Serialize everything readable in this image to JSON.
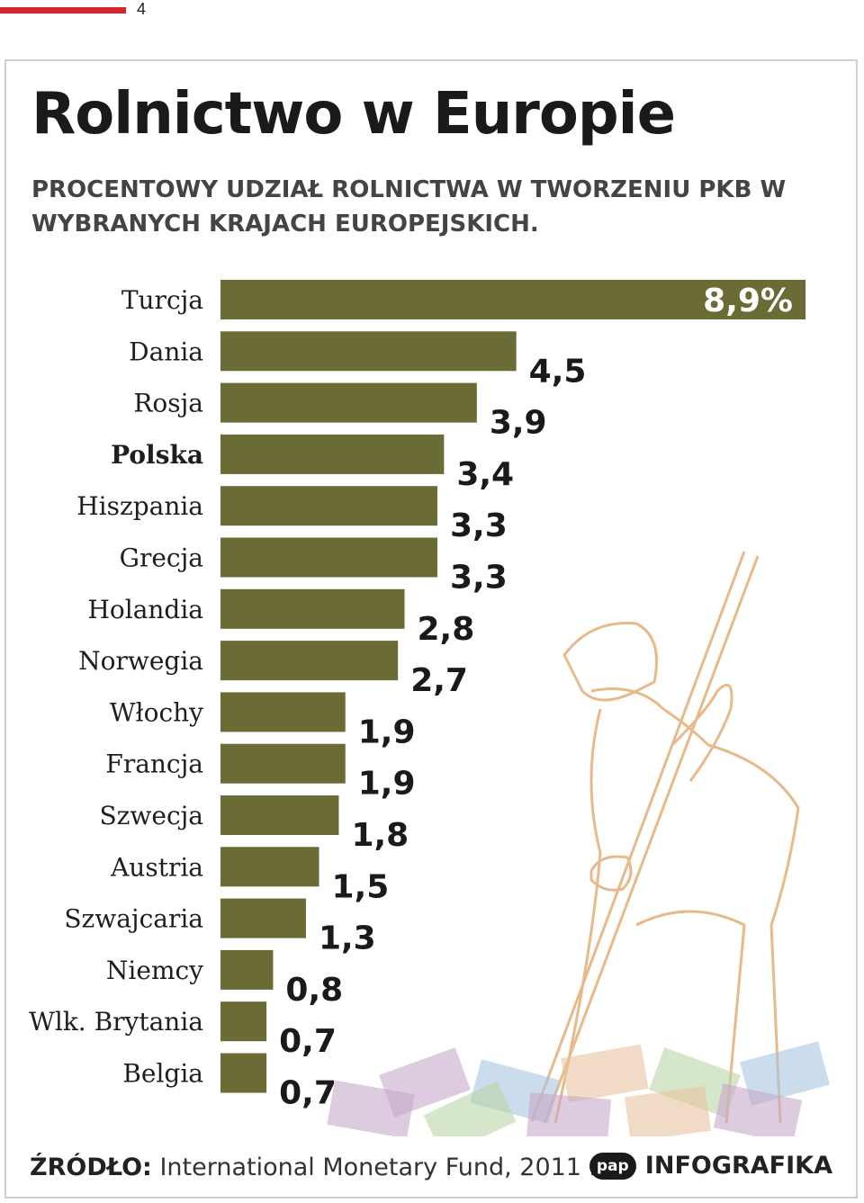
{
  "page": {
    "number": "4"
  },
  "header": {
    "title": "Rolnictwo w Europie",
    "subtitle": "PROCENTOWY UDZIAŁ ROLNICTWA W TWORZENIU PKB W WYBRANYCH KRAJACH EUROPEJSKICH."
  },
  "chart_data": {
    "type": "bar",
    "orientation": "horizontal",
    "title": "PROCENTOWY UDZIAŁ ROLNICTWA W TWORZENIU PKB W WYBRANYCH KRAJACH EUROPEJSKICH.",
    "categories": [
      "Turcja",
      "Dania",
      "Rosja",
      "Polska",
      "Hiszpania",
      "Grecja",
      "Holandia",
      "Norwegia",
      "Włochy",
      "Francja",
      "Szwecja",
      "Austria",
      "Szwajcaria",
      "Niemcy",
      "Wlk. Brytania",
      "Belgia"
    ],
    "values": [
      8.9,
      4.5,
      3.9,
      3.4,
      3.3,
      3.3,
      2.8,
      2.7,
      1.9,
      1.9,
      1.8,
      1.5,
      1.3,
      0.8,
      0.7,
      0.7
    ],
    "value_labels": [
      "8,9%",
      "4,5",
      "3,9",
      "3,4",
      "3,3",
      "3,3",
      "2,8",
      "2,7",
      "1,9",
      "1,9",
      "1,8",
      "1,5",
      "1,3",
      "0,8",
      "0,7",
      "0,7"
    ],
    "highlight": "Polska",
    "xlim": [
      0,
      8.9
    ],
    "grid": false,
    "legend": "none",
    "bar_color": "#6b6b35"
  },
  "footer": {
    "source_label": "ŹRÓDŁO:",
    "source_text": "International Monetary Fund, 2011 r.",
    "logo": "pap",
    "brand": "INFOGRAFIKA"
  },
  "colors": {
    "accent": "#d9232d",
    "bar": "#6b6b35",
    "illustration": "#e8b98a"
  }
}
